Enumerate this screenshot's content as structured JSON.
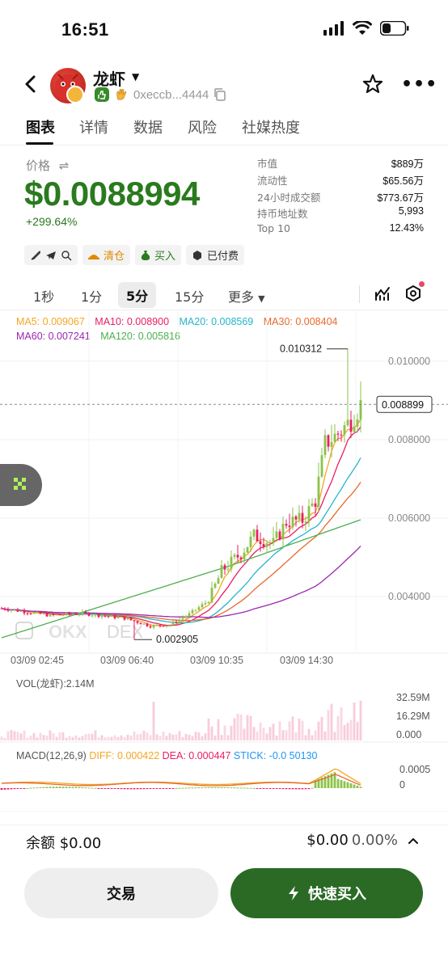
{
  "status_bar": {
    "time": "16:51"
  },
  "header": {
    "token_name": "龙虾",
    "address": "0xeccb...4444",
    "icons": [
      "back-arrow-icon",
      "star-icon",
      "more-icon",
      "copy-icon"
    ]
  },
  "tabs": [
    {
      "label": "图表",
      "active": true
    },
    {
      "label": "详情"
    },
    {
      "label": "数据"
    },
    {
      "label": "风险"
    },
    {
      "label": "社媒热度"
    }
  ],
  "price": {
    "label": "价格",
    "value": "$0.0088994",
    "change": "+299.64%"
  },
  "stats": [
    {
      "key": "市值",
      "value": "$889万"
    },
    {
      "key": "流动性",
      "value": "$65.56万"
    },
    {
      "key": "24小时成交额",
      "value": "$773.67万"
    },
    {
      "key": "持币地址数",
      "value": "5,993"
    },
    {
      "key": "Top 10",
      "value": "12.43%"
    }
  ],
  "chips": {
    "clear": "清仓",
    "buy": "买入",
    "paid": "已付费"
  },
  "intervals": [
    "1秒",
    "1分",
    "5分",
    "15分",
    "更多"
  ],
  "active_interval": "5分",
  "ma_legend": {
    "ma5": "MA5: 0.009067",
    "ma10": "MA10: 0.008900",
    "ma20": "MA20: 0.008569",
    "ma30": "MA30: 0.008404",
    "ma60": "MA60: 0.007241",
    "ma120": "MA120: 0.005816"
  },
  "colors": {
    "up": "#8bc34a",
    "down": "#e91e63",
    "ma5": "#f5a623",
    "ma10": "#e91e63",
    "ma20": "#26b5c9",
    "ma30": "#e8692c",
    "ma60": "#9c27b0",
    "ma120": "#4caf50",
    "brand_green": "#2a6a25"
  },
  "chart_data": {
    "type": "candlestick",
    "price_axis": [
      "0.010000",
      "0.008000",
      "0.006000",
      "0.004000"
    ],
    "current_price_tag": "0.008899",
    "high_marker": "0.010312",
    "low_marker": "0.002905",
    "time_labels": [
      "03/09 02:45",
      "03/09 06:40",
      "03/09 10:35",
      "03/09 14:30"
    ],
    "ylim": [
      0.0026,
      0.0108
    ],
    "watermark": "DEX",
    "volume": {
      "label": "VOL(龙虾):2.14M",
      "axis": [
        "32.59M",
        "16.29M",
        "0.000"
      ]
    },
    "macd": {
      "title": "MACD(12,26,9)",
      "diff": "DIFF: 0.000422",
      "dea": "DEA: 0.000447",
      "stick": "STICK: -0.0",
      "stick_tail": "50130",
      "axis": [
        "0.0005",
        "0"
      ]
    }
  },
  "balance": {
    "left": "余额 $0.00",
    "right_value": "$0.00",
    "right_pct": "0.00%"
  },
  "buttons": {
    "trade": "交易",
    "quick_buy": "快速买入"
  }
}
